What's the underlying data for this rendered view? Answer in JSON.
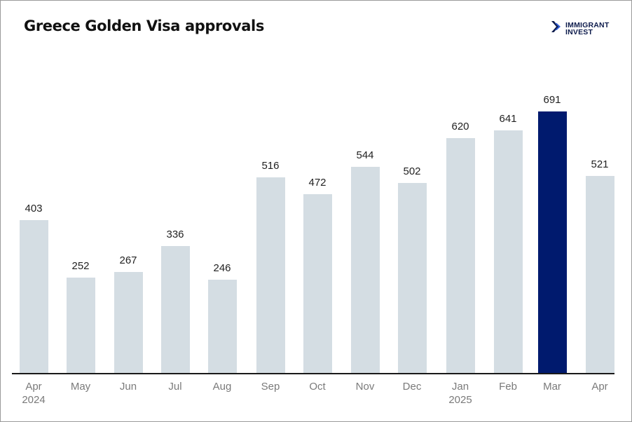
{
  "header": {
    "title": "Greece Golden Visa approvals",
    "logo": {
      "icon": "double-chevron-right-icon",
      "line1": "IMMIGRANT",
      "line2": "INVEST",
      "color": "#0d1b4c"
    }
  },
  "chart_data": {
    "type": "bar",
    "title": "Greece Golden Visa approvals",
    "xlabel": "",
    "ylabel": "",
    "categories": [
      "Apr 2024",
      "May",
      "Jun",
      "Jul",
      "Aug",
      "Sep",
      "Oct",
      "Nov",
      "Dec",
      "Jan 2025",
      "Feb",
      "Mar",
      "Apr"
    ],
    "values": [
      403,
      252,
      267,
      336,
      246,
      516,
      472,
      544,
      502,
      620,
      641,
      691,
      521
    ],
    "highlight_index": 11,
    "colors": {
      "default": "#d4dde3",
      "highlight": "#001a6e"
    },
    "ylim": [
      0,
      700
    ],
    "grid": false,
    "legend": "none",
    "data_labels": true
  },
  "ticks": [
    {
      "line1": "Apr",
      "line2": "2024"
    },
    {
      "line1": "May",
      "line2": ""
    },
    {
      "line1": "Jun",
      "line2": ""
    },
    {
      "line1": "Jul",
      "line2": ""
    },
    {
      "line1": "Aug",
      "line2": ""
    },
    {
      "line1": "Sep",
      "line2": ""
    },
    {
      "line1": "Oct",
      "line2": ""
    },
    {
      "line1": "Nov",
      "line2": ""
    },
    {
      "line1": "Dec",
      "line2": ""
    },
    {
      "line1": "Jan",
      "line2": "2025"
    },
    {
      "line1": "Feb",
      "line2": ""
    },
    {
      "line1": "Mar",
      "line2": ""
    },
    {
      "line1": "Apr",
      "line2": ""
    }
  ],
  "labels": [
    "403",
    "252",
    "267",
    "336",
    "246",
    "516",
    "472",
    "544",
    "502",
    "620",
    "641",
    "691",
    "521"
  ]
}
